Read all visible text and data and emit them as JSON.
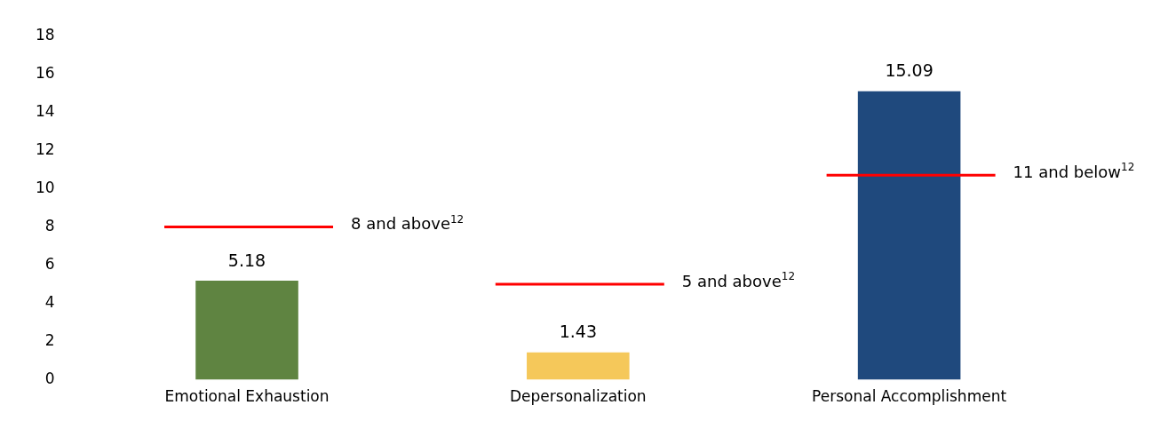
{
  "chart_data": {
    "type": "bar",
    "categories": [
      "Emotional Exhaustion",
      "Depersonalization",
      "Personal Accomplishment"
    ],
    "series": [
      {
        "colors": [
          "#5f8441",
          "#f5c85a",
          "#1f497d"
        ],
        "values": [
          5.18,
          1.43,
          15.09
        ],
        "value_labels": [
          "5.18",
          "1.43",
          "15.09"
        ]
      }
    ],
    "ylim": [
      0,
      18
    ],
    "yticks": [
      0,
      2,
      4,
      6,
      8,
      10,
      12,
      14,
      16,
      18
    ],
    "grid": false,
    "legend": false,
    "ref_lines": [
      {
        "axis": "y",
        "value": 8,
        "label": "8 and above$^{12}$",
        "color": "#ff0000"
      },
      {
        "axis": "y",
        "value": 5,
        "label": "5 and above$^{12}$",
        "color": "#ff0000"
      },
      {
        "axis": "y",
        "value": 10.7,
        "label": "11 and below$^{12}$",
        "color": "#ff0000"
      }
    ]
  }
}
